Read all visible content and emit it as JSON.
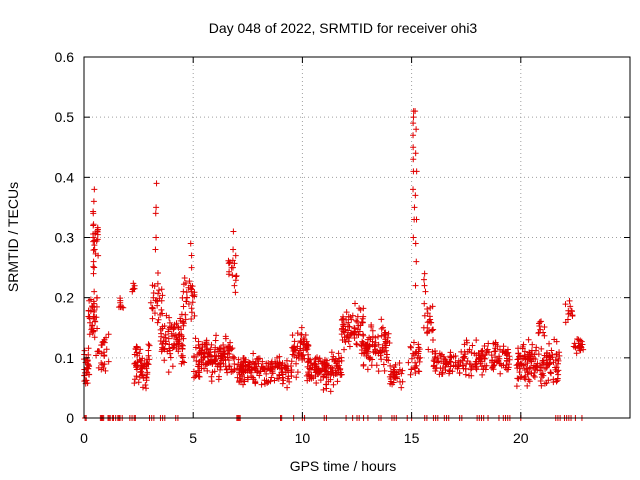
{
  "chart_data": {
    "type": "scatter",
    "title": "Day 048 of 2022, SRMTID for receiver ohi3",
    "xlabel": "GPS time / hours",
    "ylabel": "SRMTID / TECUs",
    "xlim": [
      0,
      25
    ],
    "ylim": [
      0,
      0.6
    ],
    "x_ticks": [
      0,
      5,
      10,
      15,
      20
    ],
    "x_tick_labels": [
      "0",
      "5",
      "10",
      "15",
      "20"
    ],
    "y_ticks": [
      0,
      0.1,
      0.2,
      0.3,
      0.4,
      0.5,
      0.6
    ],
    "y_tick_labels": [
      "0",
      "0.1",
      "0.2",
      "0.3",
      "0.4",
      "0.5",
      "0.6"
    ],
    "grid": true,
    "marker": "plus",
    "series_color": "#e00000",
    "series": [
      {
        "name": "SRMTID",
        "clusters": [
          {
            "x_range": [
              0.0,
              0.25
            ],
            "y_center": 0.08,
            "y_spread": 0.06,
            "n": 30
          },
          {
            "x_range": [
              0.2,
              0.6
            ],
            "y_center": 0.17,
            "y_spread": 0.05,
            "n": 35
          },
          {
            "x_range": [
              0.4,
              0.65
            ],
            "y_center": 0.3,
            "y_spread": 0.06,
            "n": 20
          },
          {
            "x_range": [
              0.55,
              1.3
            ],
            "y_center": 0.11,
            "y_spread": 0.04,
            "n": 25
          },
          {
            "x_range": [
              1.6,
              1.8
            ],
            "y_center": 0.19,
            "y_spread": 0.02,
            "n": 8
          },
          {
            "x_range": [
              2.2,
              2.4
            ],
            "y_center": 0.21,
            "y_spread": 0.02,
            "n": 6
          },
          {
            "x_range": [
              2.3,
              3.0
            ],
            "y_center": 0.09,
            "y_spread": 0.05,
            "n": 60
          },
          {
            "x_range": [
              3.0,
              3.6
            ],
            "y_center": 0.2,
            "y_spread": 0.06,
            "n": 25
          },
          {
            "x_range": [
              3.5,
              4.6
            ],
            "y_center": 0.13,
            "y_spread": 0.06,
            "n": 90
          },
          {
            "x_range": [
              4.5,
              5.1
            ],
            "y_center": 0.2,
            "y_spread": 0.06,
            "n": 30
          },
          {
            "x_range": [
              5.0,
              6.9
            ],
            "y_center": 0.1,
            "y_spread": 0.05,
            "n": 150
          },
          {
            "x_range": [
              6.6,
              7.0
            ],
            "y_center": 0.24,
            "y_spread": 0.05,
            "n": 15
          },
          {
            "x_range": [
              7.0,
              9.5
            ],
            "y_center": 0.08,
            "y_spread": 0.035,
            "n": 170
          },
          {
            "x_range": [
              9.5,
              10.3
            ],
            "y_center": 0.11,
            "y_spread": 0.05,
            "n": 60
          },
          {
            "x_range": [
              10.2,
              11.8
            ],
            "y_center": 0.08,
            "y_spread": 0.04,
            "n": 120
          },
          {
            "x_range": [
              11.8,
              12.8
            ],
            "y_center": 0.15,
            "y_spread": 0.05,
            "n": 70
          },
          {
            "x_range": [
              12.7,
              14.0
            ],
            "y_center": 0.12,
            "y_spread": 0.05,
            "n": 90
          },
          {
            "x_range": [
              14.0,
              14.6
            ],
            "y_center": 0.07,
            "y_spread": 0.03,
            "n": 30
          },
          {
            "x_range": [
              14.8,
              15.4
            ],
            "y_center": 0.1,
            "y_spread": 0.05,
            "n": 30
          },
          {
            "x_range": [
              15.7,
              16.0
            ],
            "y_center": 0.15,
            "y_spread": 0.06,
            "n": 20
          },
          {
            "x_range": [
              16.0,
              17.4
            ],
            "y_center": 0.09,
            "y_spread": 0.03,
            "n": 70
          },
          {
            "x_range": [
              17.4,
              19.5
            ],
            "y_center": 0.1,
            "y_spread": 0.04,
            "n": 120
          },
          {
            "x_range": [
              19.8,
              21.8
            ],
            "y_center": 0.09,
            "y_spread": 0.05,
            "n": 150
          },
          {
            "x_range": [
              20.8,
              21.1
            ],
            "y_center": 0.15,
            "y_spread": 0.03,
            "n": 10
          },
          {
            "x_range": [
              22.0,
              22.4
            ],
            "y_center": 0.17,
            "y_spread": 0.03,
            "n": 12
          },
          {
            "x_range": [
              22.4,
              22.9
            ],
            "y_center": 0.12,
            "y_spread": 0.02,
            "n": 20
          }
        ],
        "spikes": [
          {
            "x": 0.45,
            "values": [
              0.21,
              0.24,
              0.26,
              0.28,
              0.3,
              0.32,
              0.34,
              0.36,
              0.38
            ]
          },
          {
            "x": 3.3,
            "values": [
              0.28,
              0.3,
              0.34,
              0.35,
              0.39
            ]
          },
          {
            "x": 4.9,
            "values": [
              0.22,
              0.25,
              0.27,
              0.29
            ]
          },
          {
            "x": 6.85,
            "values": [
              0.22,
              0.25,
              0.28,
              0.31
            ]
          },
          {
            "x": 15.1,
            "values": [
              0.3,
              0.33,
              0.35,
              0.38,
              0.41,
              0.43,
              0.45,
              0.47,
              0.49,
              0.5,
              0.51
            ]
          },
          {
            "x": 15.2,
            "values": [
              0.22,
              0.26,
              0.29,
              0.33,
              0.37,
              0.41,
              0.44,
              0.48,
              0.51
            ]
          },
          {
            "x": 15.6,
            "values": [
              0.15,
              0.17,
              0.19,
              0.21,
              0.22,
              0.23,
              0.24
            ]
          }
        ],
        "zero_points": [
          0.05,
          0.1,
          0.75,
          0.8,
          0.85,
          0.9,
          1.1,
          1.15,
          1.2,
          1.3,
          1.35,
          1.45,
          1.55,
          1.6,
          1.65,
          1.75,
          2.1,
          2.2,
          2.3,
          2.35,
          3.0,
          3.1,
          3.2,
          3.5,
          3.6,
          3.7,
          4.2,
          4.3,
          7.0,
          7.05,
          7.1,
          7.15,
          9.0,
          9.05,
          9.6,
          10.0,
          10.1,
          11.0,
          11.1,
          12.0,
          12.3,
          12.5,
          12.6,
          12.8,
          13.0,
          13.5,
          13.6,
          14.1,
          14.2,
          14.3,
          14.8,
          15.0,
          15.6,
          15.7,
          16.0,
          16.1,
          16.2,
          16.5,
          16.6,
          16.7,
          17.2,
          17.3,
          18.0,
          18.1,
          18.2,
          18.3,
          18.5,
          19.0,
          19.2,
          19.3,
          19.4,
          19.5,
          20.0,
          21.6,
          21.7,
          21.8,
          22.0,
          22.1,
          22.2,
          22.3,
          22.5,
          22.8
        ]
      }
    ]
  }
}
